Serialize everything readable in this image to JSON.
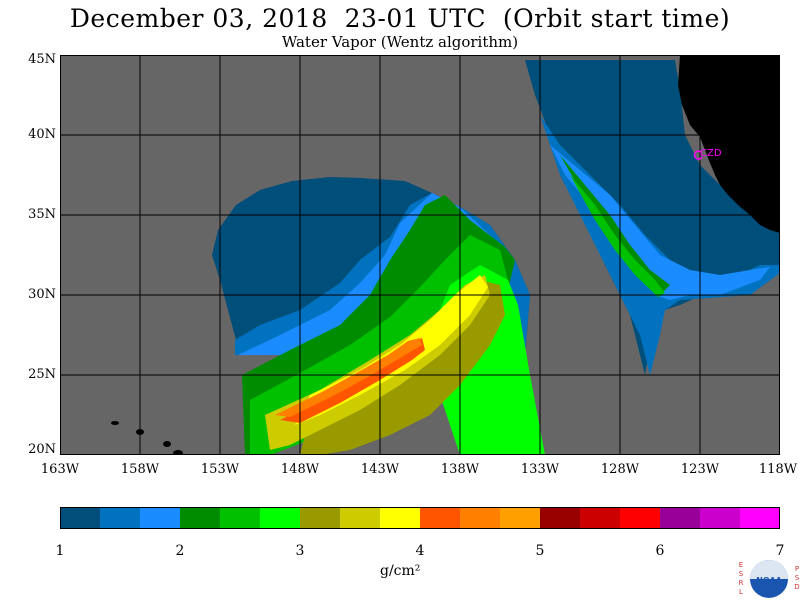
{
  "header": {
    "title": "December 03, 2018  23-01 UTC  (Orbit start time)",
    "subtitle": "Water Vapor (Wentz algorithm)"
  },
  "map": {
    "lat_labels": [
      "45N",
      "40N",
      "35N",
      "30N",
      "25N",
      "20N"
    ],
    "lon_labels": [
      "163W",
      "158W",
      "153W",
      "148W",
      "143W",
      "138W",
      "133W",
      "128W",
      "123W",
      "118W"
    ],
    "station_label": "CZD",
    "colors": {
      "missing": "#666666",
      "land": "#000000",
      "grid": "#000000",
      "station": "#ff00ff"
    }
  },
  "colorbar": {
    "tick_labels": [
      "1",
      "2",
      "3",
      "4",
      "5",
      "6",
      "7"
    ],
    "unit": "g/cm²",
    "colors": [
      "#004e7a",
      "#0072bf",
      "#1a8cff",
      "#008c00",
      "#00c000",
      "#00ff00",
      "#999900",
      "#cccc00",
      "#ffff00",
      "#ff5500",
      "#ff7f00",
      "#ffa000",
      "#990000",
      "#cc0000",
      "#ff0000",
      "#990099",
      "#cc00cc",
      "#ff00ff"
    ]
  },
  "logo": {
    "left_letters": "ESRL",
    "right_letters": "PSD",
    "emblem_text": "NOAA"
  }
}
